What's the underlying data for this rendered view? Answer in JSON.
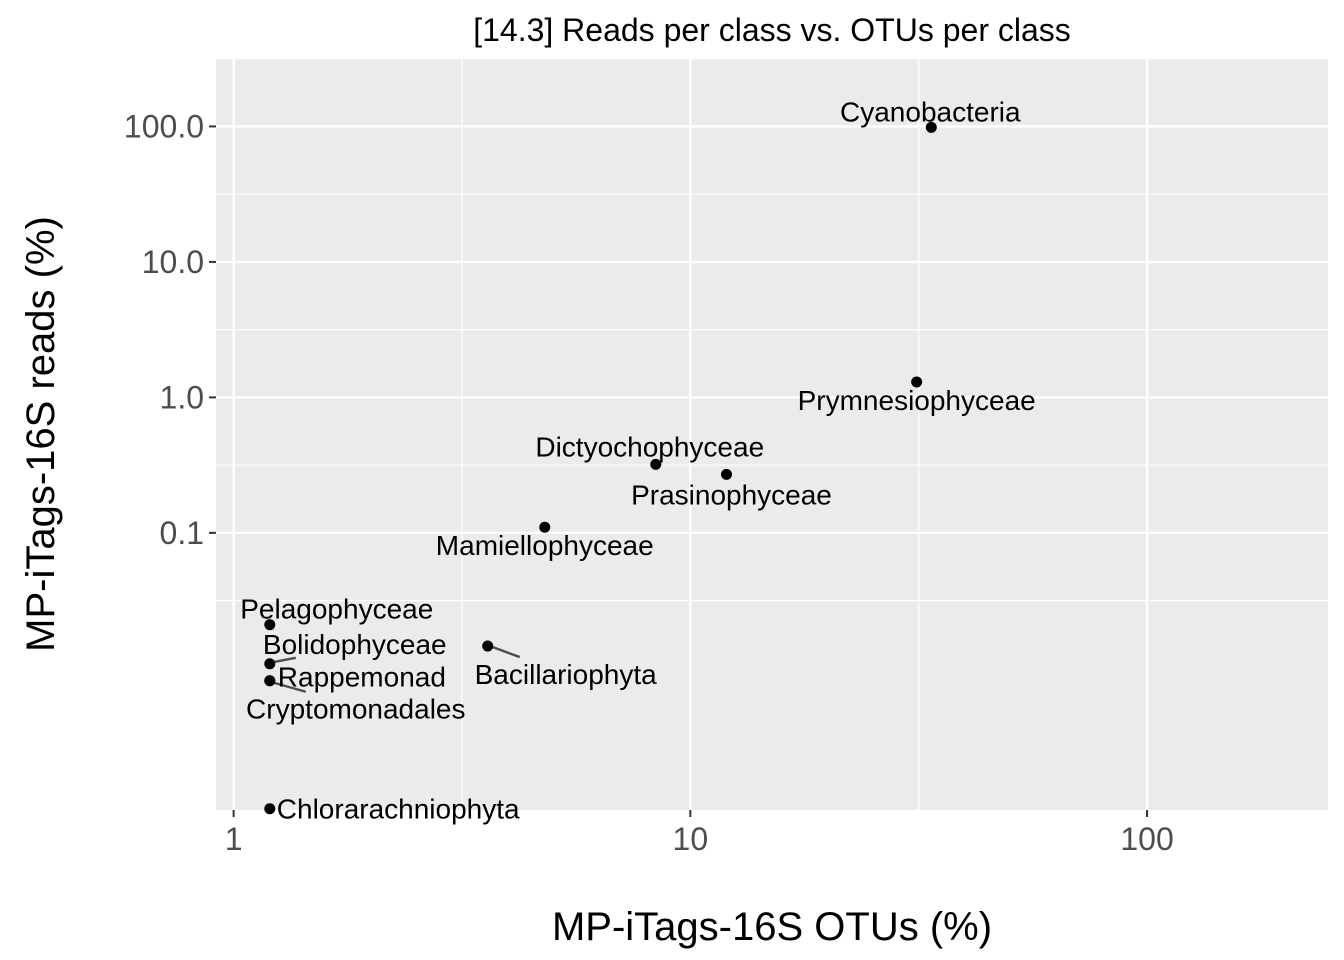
{
  "chart_data": {
    "type": "scatter",
    "title": "[14.3] Reads per class vs. OTUs per class",
    "xlabel": "MP-iTags-16S OTUs (%)",
    "ylabel": "MP-iTags-16S reads (%)",
    "x_scale": "log10",
    "y_scale": "log10",
    "xlim": [
      0.915,
      249
    ],
    "ylim": [
      0.0009,
      320
    ],
    "x_ticks": [
      1,
      10,
      100
    ],
    "x_tick_labels": [
      "1",
      "10",
      "100"
    ],
    "y_ticks": [
      0.1,
      1,
      10,
      100
    ],
    "y_tick_labels": [
      "0.1",
      "1.0",
      "10.0",
      "100.0"
    ],
    "grid": true,
    "legend": "none",
    "colors": {
      "panel": "#ebebeb",
      "grid": "#ffffff",
      "point": "#000000",
      "segment": "#4d4d4d",
      "tick_text": "#4d4d4d"
    },
    "points": [
      {
        "label": "Cyanobacteria",
        "x": 33.7,
        "y": 98.5
      },
      {
        "label": "Prymnesiophyceae",
        "x": 31.3,
        "y": 1.3
      },
      {
        "label": "Dictyochophyceae",
        "x": 8.4,
        "y": 0.32
      },
      {
        "label": "Prasinophyceae",
        "x": 12.0,
        "y": 0.27
      },
      {
        "label": "Mamiellophyceae",
        "x": 4.8,
        "y": 0.11
      },
      {
        "label": "Pelagophyceae",
        "x": 1.2,
        "y": 0.021
      },
      {
        "label": "Bolidophyceae",
        "x": 1.2,
        "y": 0.0108
      },
      {
        "label": "Rappemonad",
        "x": 1.2,
        "y": 0.0081
      },
      {
        "label": "Cryptomonadales",
        "x": 1.2,
        "y": 0.0081
      },
      {
        "label": "Bacillariophyta",
        "x": 3.6,
        "y": 0.0146
      },
      {
        "label": "Chlorarachniophyta",
        "x": 1.2,
        "y": 0.00092
      }
    ]
  }
}
